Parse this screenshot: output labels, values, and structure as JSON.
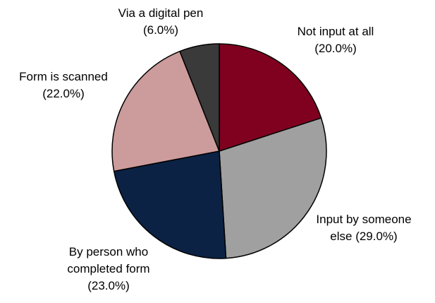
{
  "chart_data": {
    "type": "pie",
    "title": "",
    "slices": [
      {
        "label_lines": [
          "Not input at all",
          "(20.0%)"
        ],
        "value": 20.0,
        "color": "#800020"
      },
      {
        "label_lines": [
          "Input by someone",
          "else (29.0%)"
        ],
        "value": 29.0,
        "color": "#a0a0a0"
      },
      {
        "label_lines": [
          "By person who",
          "completed form",
          "(23.0%)"
        ],
        "value": 23.0,
        "color": "#0b2244"
      },
      {
        "label_lines": [
          "Form is scanned",
          "(22.0%)"
        ],
        "value": 22.0,
        "color": "#cc9b9b"
      },
      {
        "label_lines": [
          "Via a digital pen",
          "(6.0%)"
        ],
        "value": 6.0,
        "color": "#3a3a3a"
      }
    ],
    "start_angle": "12 o'clock",
    "direction": "clockwise",
    "slice_border_color": "#000000",
    "legend": "none"
  }
}
